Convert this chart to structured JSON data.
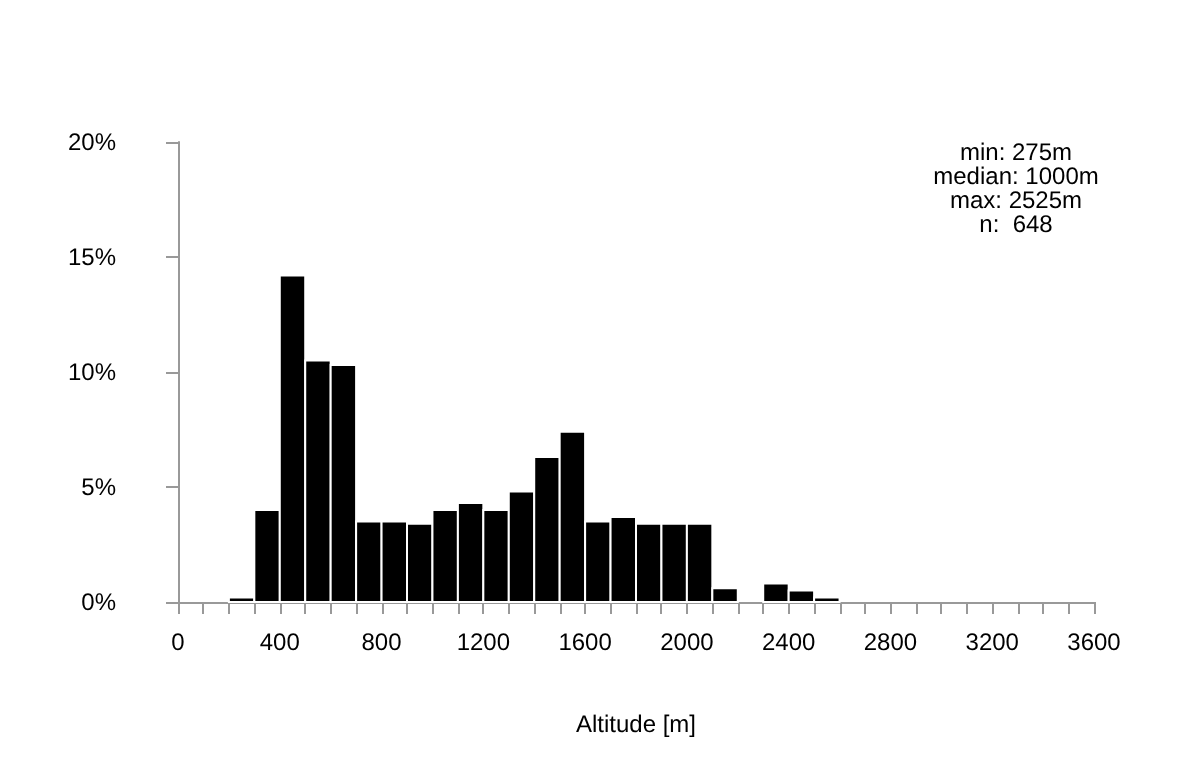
{
  "chart_data": {
    "type": "histogram",
    "xlabel": "Altitude [m]",
    "annotations": [
      "min: 275m",
      "median: 1000m",
      "max: 2525m",
      "n:  648"
    ],
    "bins": [
      0,
      100,
      200,
      300,
      400,
      500,
      600,
      700,
      800,
      900,
      1000,
      1100,
      1200,
      1300,
      1400,
      1500,
      1600,
      1700,
      1800,
      1900,
      2000,
      2100,
      2200,
      2300,
      2400,
      2500,
      2600,
      2700,
      2800,
      2900,
      3000,
      3100,
      3200,
      3300,
      3400,
      3500,
      3600
    ],
    "values": [
      0,
      0,
      0.2,
      4.0,
      14.2,
      10.5,
      10.3,
      3.5,
      3.5,
      3.4,
      4.0,
      4.3,
      4.0,
      4.8,
      6.3,
      7.4,
      3.5,
      3.7,
      3.4,
      3.4,
      3.4,
      0.6,
      0,
      0.8,
      0.5,
      0.2,
      0,
      0,
      0,
      0,
      0,
      0,
      0,
      0,
      0,
      0
    ],
    "color": "#000000",
    "xlim": [
      0,
      3600
    ],
    "xticks": [
      0,
      {
        "value": 100,
        "label": null
      },
      {
        "value": 200,
        "label": null
      },
      {
        "value": 300,
        "label": null
      },
      400,
      {
        "value": 500,
        "label": null
      },
      {
        "value": 600,
        "label": null
      },
      {
        "value": 700,
        "label": null
      },
      800,
      {
        "value": 900,
        "label": null
      },
      {
        "value": 1000,
        "label": null
      },
      {
        "value": 1100,
        "label": null
      },
      1200,
      {
        "value": 1300,
        "label": null
      },
      {
        "value": 1400,
        "label": null
      },
      {
        "value": 1500,
        "label": null
      },
      1600,
      {
        "value": 1700,
        "label": null
      },
      {
        "value": 1800,
        "label": null
      },
      {
        "value": 1900,
        "label": null
      },
      2000,
      {
        "value": 2100,
        "label": null
      },
      {
        "value": 2200,
        "label": null
      },
      {
        "value": 2300,
        "label": null
      },
      2400,
      {
        "value": 2500,
        "label": null
      },
      {
        "value": 2600,
        "label": null
      },
      {
        "value": 2700,
        "label": null
      },
      2800,
      {
        "value": 2900,
        "label": null
      },
      {
        "value": 3000,
        "label": null
      },
      {
        "value": 3100,
        "label": null
      },
      3200,
      {
        "value": 3300,
        "label": null
      },
      {
        "value": 3400,
        "label": null
      },
      {
        "value": 3500,
        "label": null
      },
      3600
    ],
    "ylim": [
      0,
      20
    ],
    "yticks": [
      {
        "value": 0,
        "label": "0%"
      },
      {
        "value": 5,
        "label": "5%"
      },
      {
        "value": 10,
        "label": "10%"
      },
      {
        "value": 15,
        "label": "15%"
      },
      {
        "value": 20,
        "label": "20%"
      }
    ],
    "grid": false
  }
}
